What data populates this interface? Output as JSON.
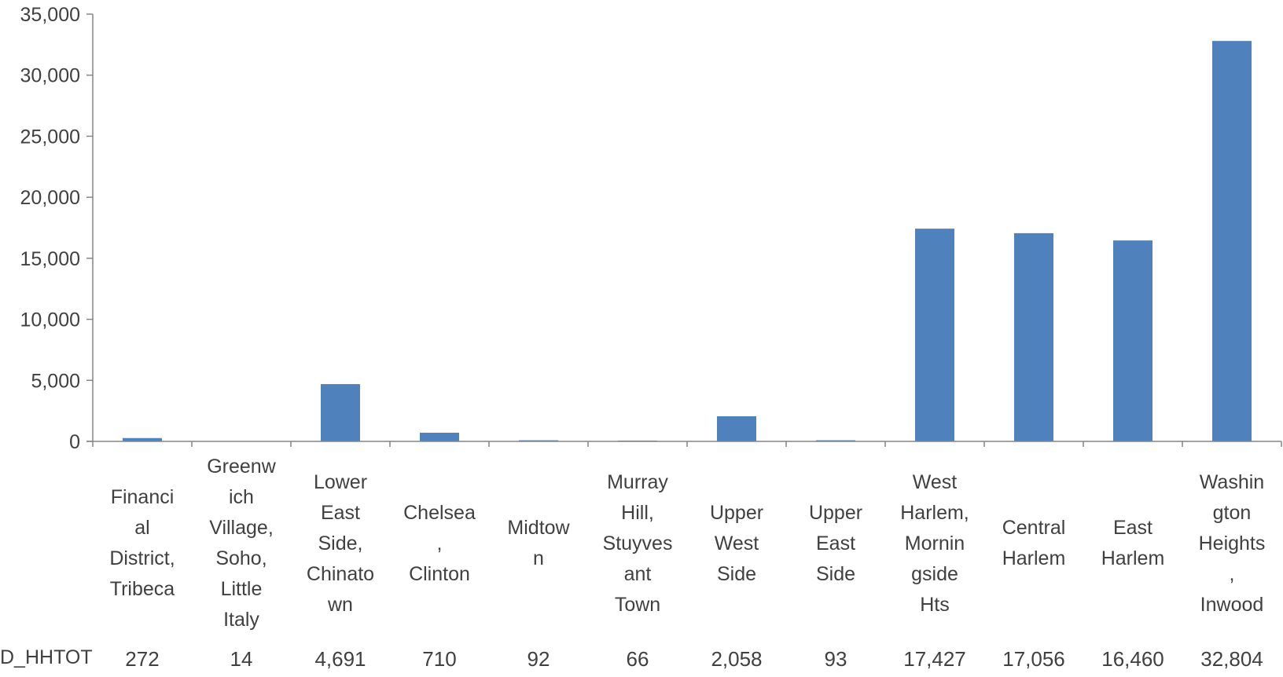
{
  "chart_data": {
    "type": "bar",
    "title": "",
    "xlabel": "",
    "ylabel": "",
    "ylim": [
      0,
      35000
    ],
    "yticks": [
      0,
      5000,
      10000,
      15000,
      20000,
      25000,
      30000,
      35000
    ],
    "ytick_labels": [
      "0",
      "5,000",
      "10,000",
      "15,000",
      "20,000",
      "25,000",
      "30,000",
      "35,000"
    ],
    "grid": false,
    "legend": "none",
    "bar_color": "#4f81bd",
    "categories": [
      "Financi\nal\nDistrict,\nTribeca",
      "Greenw\nich\nVillage,\nSoho,\nLittle\nItaly",
      "Lower\nEast\nSide,\nChinato\nwn",
      "Chelsea\n,\nClinton",
      "Midtow\nn",
      "Murray\nHill,\nStuyves\nant\nTown",
      "Upper\nWest\nSide",
      "Upper\nEast\nSide",
      "West\nHarlem,\nMornin\ngside\nHts",
      "Central\nHarlem",
      "East\nHarlem",
      "Washin\ngton\nHeights\n,\nInwood"
    ],
    "series": [
      {
        "name": "D_HHTOT",
        "values": [
          272,
          14,
          4691,
          710,
          92,
          66,
          2058,
          93,
          17427,
          17056,
          16460,
          32804
        ],
        "value_labels": [
          "272",
          "14",
          "4,691",
          "710",
          "92",
          "66",
          "2,058",
          "93",
          "17,427",
          "17,056",
          "16,460",
          "32,804"
        ]
      }
    ]
  }
}
